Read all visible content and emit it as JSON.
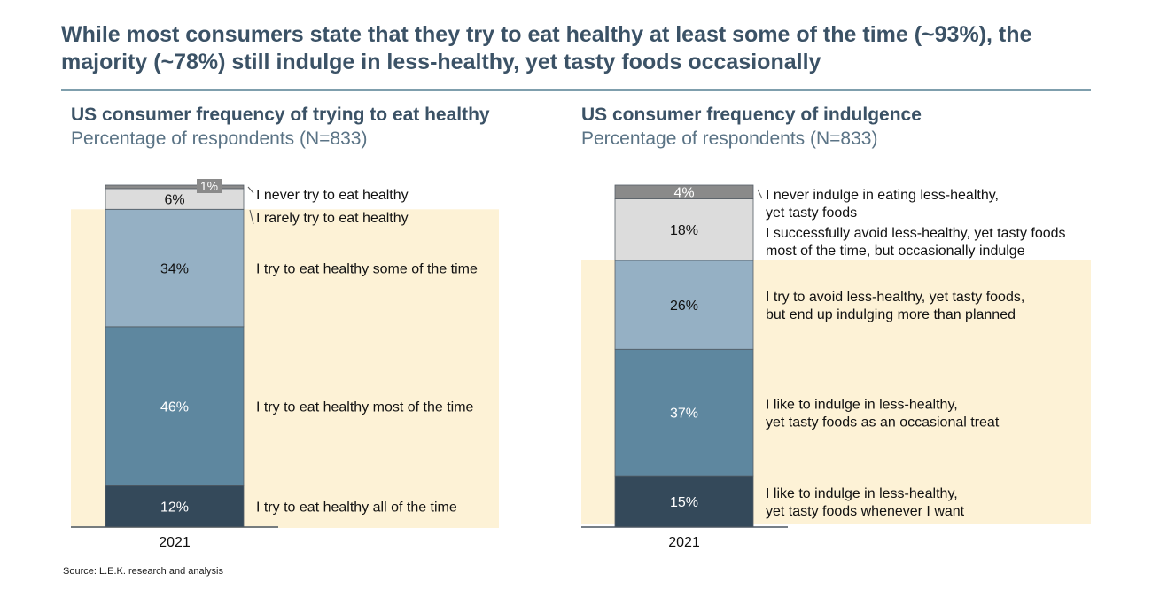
{
  "headline": "While most consumers state that they try to eat healthy at least some of the time (~93%), the majority (~78%) still indulge in less-healthy, yet tasty foods occasionally",
  "source": "Source: L.E.K. research and analysis",
  "colors": {
    "highlight": "#fdf2d6",
    "segments": [
      "#34495a",
      "#5e879f",
      "#95b0c4",
      "#dcdcdc",
      "#8a8a8a"
    ]
  },
  "chart_data": [
    {
      "type": "bar",
      "stacked": true,
      "title": "US consumer frequency of trying to eat healthy",
      "subtitle": "Percentage of respondents (N=833)",
      "categories": [
        "2021"
      ],
      "highlighted_segments": 3,
      "segments": [
        {
          "label": "I try to eat healthy all of the time",
          "value": 12,
          "value_label": "12%"
        },
        {
          "label": "I try to eat healthy most of the time",
          "value": 46,
          "value_label": "46%"
        },
        {
          "label": "I try to eat healthy some of the time",
          "value": 34,
          "value_label": "34%"
        },
        {
          "label": "I rarely try to eat healthy",
          "value": 6,
          "value_label": "6%"
        },
        {
          "label": "I never try to eat healthy",
          "value": 1,
          "value_label": "1%"
        }
      ]
    },
    {
      "type": "bar",
      "stacked": true,
      "title": "US consumer frequency of indulgence",
      "subtitle": "Percentage of respondents (N=833)",
      "categories": [
        "2021"
      ],
      "highlighted_segments": 3,
      "segments": [
        {
          "label": "I like to indulge in less-healthy,\nyet tasty foods whenever I want",
          "value": 15,
          "value_label": "15%"
        },
        {
          "label": "I like to indulge in less-healthy,\nyet tasty foods as an occasional treat",
          "value": 37,
          "value_label": "37%"
        },
        {
          "label": "I try to avoid less-healthy, yet tasty foods,\nbut end up indulging more than planned",
          "value": 26,
          "value_label": "26%"
        },
        {
          "label": "I successfully avoid less-healthy, yet tasty foods\nmost of the time, but occasionally indulge",
          "value": 18,
          "value_label": "18%"
        },
        {
          "label": "I never indulge in eating less-healthy,\nyet tasty foods",
          "value": 4,
          "value_label": "4%"
        }
      ]
    }
  ]
}
